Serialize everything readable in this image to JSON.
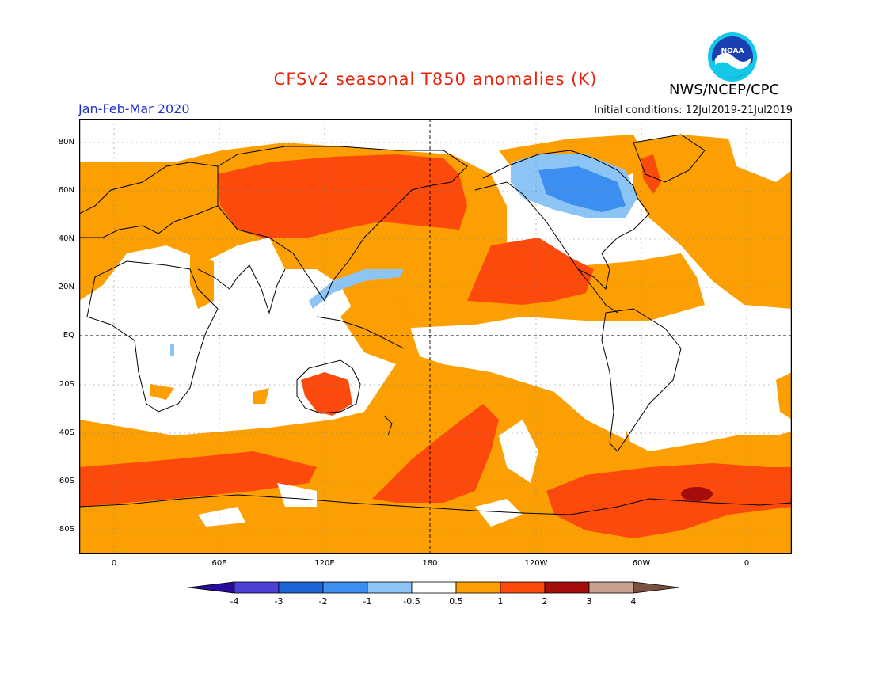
{
  "header": {
    "title": "CFSv2 seasonal T850 anomalies (K)",
    "period": "Jan-Feb-Mar 2020",
    "initial_conditions": "Initial conditions: 12Jul2019-21Jul2019",
    "agency": "NWS/NCEP/CPC",
    "logo_text": "NOAA"
  },
  "map": {
    "lat_labels": [
      "80N",
      "60N",
      "40N",
      "20N",
      "EQ",
      "20S",
      "40S",
      "60S",
      "80S"
    ],
    "lon_labels": [
      "0",
      "60E",
      "120E",
      "180",
      "120W",
      "60W",
      "0"
    ]
  },
  "colorbar": {
    "labels": [
      "-4",
      "-3",
      "-2",
      "-1",
      "-0.5",
      "0.5",
      "1",
      "2",
      "3",
      "4"
    ],
    "colors": [
      "#2a0a9a",
      "#4b3fd6",
      "#1e64d6",
      "#3c8ef0",
      "#8cc4f5",
      "#ffffff",
      "#fb9f03",
      "#fb4a0b",
      "#a50d0d",
      "#c8a090",
      "#7a5040"
    ]
  }
}
